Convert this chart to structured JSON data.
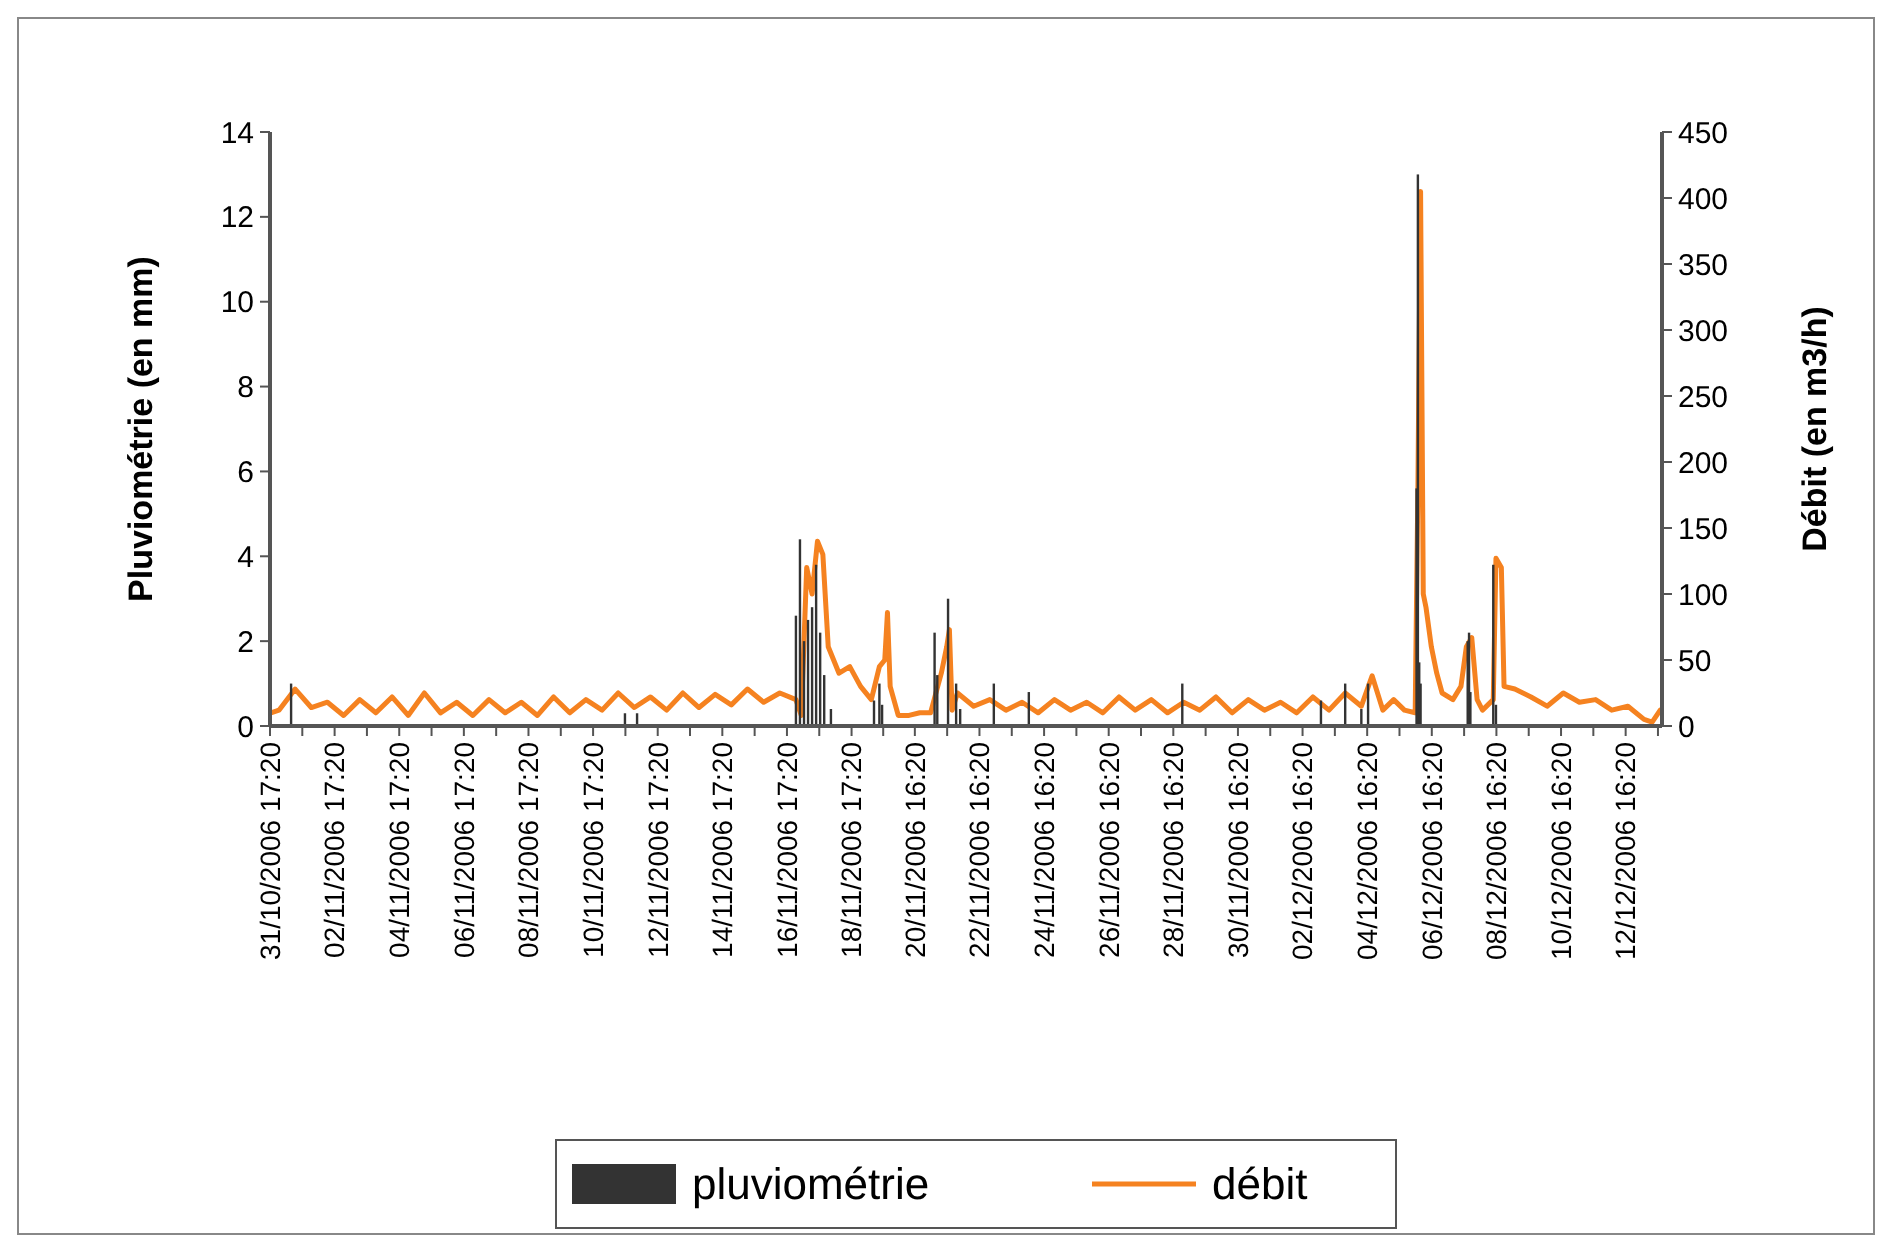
{
  "chart_data": {
    "type": "line",
    "ylabel": "Pluviométrie (en mm)",
    "y2label": "Débit (en m3/h)",
    "xlim": [
      "2006-10-31T17:20",
      "2006-12-13T19:20"
    ],
    "xticks": [
      {
        "value": "2006-10-31T17:20",
        "label": "31/10/2006 17:20"
      },
      {
        "value": "2006-11-01T17:20",
        "label": null
      },
      {
        "value": "2006-11-02T17:20",
        "label": "02/11/2006 17:20"
      },
      {
        "value": "2006-11-03T17:20",
        "label": null
      },
      {
        "value": "2006-11-04T17:20",
        "label": "04/11/2006 17:20"
      },
      {
        "value": "2006-11-05T17:20",
        "label": null
      },
      {
        "value": "2006-11-06T17:20",
        "label": "06/11/2006 17:20"
      },
      {
        "value": "2006-11-07T17:20",
        "label": null
      },
      {
        "value": "2006-11-08T17:20",
        "label": "08/11/2006 17:20"
      },
      {
        "value": "2006-11-09T17:20",
        "label": null
      },
      {
        "value": "2006-11-10T17:20",
        "label": "10/11/2006 17:20"
      },
      {
        "value": "2006-11-11T17:20",
        "label": null
      },
      {
        "value": "2006-11-12T17:20",
        "label": "12/11/2006 17:20"
      },
      {
        "value": "2006-11-13T17:20",
        "label": null
      },
      {
        "value": "2006-11-14T17:20",
        "label": "14/11/2006 17:20"
      },
      {
        "value": "2006-11-15T17:20",
        "label": null
      },
      {
        "value": "2006-11-16T17:20",
        "label": "16/11/2006 17:20"
      },
      {
        "value": "2006-11-17T17:20",
        "label": null
      },
      {
        "value": "2006-11-18T17:20",
        "label": "18/11/2006 17:20"
      },
      {
        "value": "2006-11-19T16:50",
        "label": null
      },
      {
        "value": "2006-11-20T16:20",
        "label": "20/11/2006 16:20"
      },
      {
        "value": "2006-11-21T16:20",
        "label": null
      },
      {
        "value": "2006-11-22T16:20",
        "label": "22/11/2006 16:20"
      },
      {
        "value": "2006-11-23T16:20",
        "label": null
      },
      {
        "value": "2006-11-24T16:20",
        "label": "24/11/2006 16:20"
      },
      {
        "value": "2006-11-25T16:20",
        "label": null
      },
      {
        "value": "2006-11-26T16:20",
        "label": "26/11/2006 16:20"
      },
      {
        "value": "2006-11-27T16:20",
        "label": null
      },
      {
        "value": "2006-11-28T16:20",
        "label": "28/11/2006 16:20"
      },
      {
        "value": "2006-11-29T16:20",
        "label": null
      },
      {
        "value": "2006-11-30T16:20",
        "label": "30/11/2006 16:20"
      },
      {
        "value": "2006-12-01T16:20",
        "label": null
      },
      {
        "value": "2006-12-02T16:20",
        "label": "02/12/2006 16:20"
      },
      {
        "value": "2006-12-03T16:20",
        "label": null
      },
      {
        "value": "2006-12-04T16:20",
        "label": "04/12/2006 16:20"
      },
      {
        "value": "2006-12-05T16:20",
        "label": null
      },
      {
        "value": "2006-12-06T16:20",
        "label": "06/12/2006 16:20"
      },
      {
        "value": "2006-12-07T16:20",
        "label": null
      },
      {
        "value": "2006-12-08T16:20",
        "label": "08/12/2006 16:20"
      },
      {
        "value": "2006-12-09T16:20",
        "label": null
      },
      {
        "value": "2006-12-10T16:20",
        "label": "10/12/2006 16:20"
      },
      {
        "value": "2006-12-11T16:20",
        "label": null
      },
      {
        "value": "2006-12-12T16:20",
        "label": "12/12/2006 16:20"
      },
      {
        "value": "2006-12-13T16:20",
        "label": null
      }
    ],
    "ylim": [
      0,
      14
    ],
    "yticks": [
      0,
      2,
      4,
      6,
      8,
      10,
      12,
      14
    ],
    "y2lim": [
      0,
      450
    ],
    "y2ticks": [
      0,
      50,
      100,
      150,
      200,
      250,
      300,
      350,
      400,
      450
    ],
    "grid": false,
    "legend": "bottom",
    "series": [
      {
        "name": "pluviométrie",
        "type": "bar",
        "color": "#333333",
        "x": [
          "2006-11-01T09:00",
          "2006-11-11T17:00",
          "2006-11-12T02:00",
          "2006-11-17T00:00",
          "2006-11-17T03:00",
          "2006-11-17T06:00",
          "2006-11-17T09:00",
          "2006-11-17T12:00",
          "2006-11-17T15:00",
          "2006-11-17T18:00",
          "2006-11-17T21:00",
          "2006-11-18T02:00",
          "2006-11-19T10:00",
          "2006-11-19T14:00",
          "2006-11-19T16:00",
          "2006-11-21T07:00",
          "2006-11-21T09:00",
          "2006-11-21T17:00",
          "2006-11-21T23:00",
          "2006-11-22T02:00",
          "2006-11-23T03:00",
          "2006-11-24T05:00",
          "2006-11-28T23:00",
          "2006-12-03T06:00",
          "2006-12-04T00:00",
          "2006-12-04T12:00",
          "2006-12-04T17:00",
          "2006-12-06T05:00",
          "2006-12-06T06:00",
          "2006-12-06T07:00",
          "2006-12-06T08:00",
          "2006-12-07T19:00",
          "2006-12-07T20:00",
          "2006-12-07T21:00",
          "2006-12-08T14:00",
          "2006-12-08T16:00"
        ],
        "values": [
          1.0,
          0.3,
          0.3,
          2.6,
          4.4,
          2.0,
          2.5,
          2.8,
          3.8,
          2.2,
          1.2,
          0.4,
          0.6,
          1.0,
          0.5,
          2.2,
          1.2,
          3.0,
          1.0,
          0.4,
          1.0,
          0.8,
          1.0,
          0.6,
          1.0,
          0.4,
          1.0,
          5.6,
          13.0,
          1.5,
          1.0,
          2.0,
          2.2,
          0.8,
          3.8,
          0.5
        ]
      },
      {
        "name": "débit",
        "axis": "y2",
        "color": "#f58220",
        "x": [
          "2006-10-31T18:00",
          "2006-11-01T00:00",
          "2006-11-01T12:00",
          "2006-11-02T00:00",
          "2006-11-02T12:00",
          "2006-11-03T00:00",
          "2006-11-03T12:00",
          "2006-11-04T00:00",
          "2006-11-04T12:00",
          "2006-11-05T00:00",
          "2006-11-05T12:00",
          "2006-11-06T00:00",
          "2006-11-06T12:00",
          "2006-11-07T00:00",
          "2006-11-07T12:00",
          "2006-11-08T00:00",
          "2006-11-08T12:00",
          "2006-11-09T00:00",
          "2006-11-09T12:00",
          "2006-11-10T00:00",
          "2006-11-10T12:00",
          "2006-11-11T00:00",
          "2006-11-11T12:00",
          "2006-11-12T00:00",
          "2006-11-12T12:00",
          "2006-11-13T00:00",
          "2006-11-13T12:00",
          "2006-11-14T00:00",
          "2006-11-14T12:00",
          "2006-11-15T00:00",
          "2006-11-15T12:00",
          "2006-11-16T00:00",
          "2006-11-16T12:00",
          "2006-11-17T00:00",
          "2006-11-17T04:00",
          "2006-11-17T08:00",
          "2006-11-17T12:00",
          "2006-11-17T16:00",
          "2006-11-17T20:00",
          "2006-11-18T00:00",
          "2006-11-18T08:00",
          "2006-11-18T16:00",
          "2006-11-19T00:00",
          "2006-11-19T08:00",
          "2006-11-19T14:00",
          "2006-11-19T18:00",
          "2006-11-19T20:00",
          "2006-11-19T22:00",
          "2006-11-20T04:00",
          "2006-11-20T12:00",
          "2006-11-20T20:00",
          "2006-11-21T04:00",
          "2006-11-21T12:00",
          "2006-11-21T16:00",
          "2006-11-21T18:00",
          "2006-11-21T20:00",
          "2006-11-22T00:00",
          "2006-11-22T12:00",
          "2006-11-23T00:00",
          "2006-11-23T12:00",
          "2006-11-24T00:00",
          "2006-11-24T12:00",
          "2006-11-25T00:00",
          "2006-11-25T12:00",
          "2006-11-26T00:00",
          "2006-11-26T12:00",
          "2006-11-27T00:00",
          "2006-11-27T12:00",
          "2006-11-28T00:00",
          "2006-11-28T12:00",
          "2006-11-29T00:00",
          "2006-11-29T12:00",
          "2006-11-30T00:00",
          "2006-11-30T12:00",
          "2006-12-01T00:00",
          "2006-12-01T12:00",
          "2006-12-02T00:00",
          "2006-12-02T12:00",
          "2006-12-03T00:00",
          "2006-12-03T12:00",
          "2006-12-04T00:00",
          "2006-12-04T12:00",
          "2006-12-04T20:00",
          "2006-12-05T04:00",
          "2006-12-05T12:00",
          "2006-12-05T20:00",
          "2006-12-06T04:00",
          "2006-12-06T06:00",
          "2006-12-06T08:00",
          "2006-12-06T10:00",
          "2006-12-06T12:00",
          "2006-12-06T16:00",
          "2006-12-06T20:00",
          "2006-12-07T00:00",
          "2006-12-07T08:00",
          "2006-12-07T14:00",
          "2006-12-07T18:00",
          "2006-12-07T22:00",
          "2006-12-08T02:00",
          "2006-12-08T06:00",
          "2006-12-08T14:00",
          "2006-12-08T16:00",
          "2006-12-08T20:00",
          "2006-12-08T22:00",
          "2006-12-09T06:00",
          "2006-12-09T18:00",
          "2006-12-10T06:00",
          "2006-12-10T18:00",
          "2006-12-11T06:00",
          "2006-12-11T18:00",
          "2006-12-12T06:00",
          "2006-12-12T18:00",
          "2006-12-13T06:00",
          "2006-12-13T12:00",
          "2006-12-13T18:00"
        ],
        "values": [
          10,
          12,
          28,
          14,
          18,
          8,
          20,
          10,
          22,
          8,
          25,
          10,
          18,
          8,
          20,
          10,
          18,
          8,
          22,
          10,
          20,
          12,
          25,
          14,
          22,
          12,
          25,
          14,
          24,
          16,
          28,
          18,
          25,
          20,
          8,
          120,
          100,
          140,
          130,
          60,
          40,
          45,
          30,
          20,
          45,
          50,
          86,
          30,
          8,
          8,
          10,
          10,
          40,
          60,
          73,
          12,
          25,
          15,
          20,
          12,
          18,
          10,
          20,
          12,
          18,
          10,
          22,
          12,
          20,
          10,
          18,
          12,
          22,
          10,
          20,
          12,
          18,
          10,
          22,
          12,
          25,
          15,
          38,
          12,
          20,
          12,
          10,
          180,
          405,
          100,
          90,
          60,
          40,
          25,
          20,
          30,
          60,
          67,
          20,
          12,
          20,
          127,
          120,
          30,
          28,
          22,
          15,
          25,
          18,
          20,
          12,
          15,
          5,
          3,
          12
        ]
      }
    ]
  }
}
